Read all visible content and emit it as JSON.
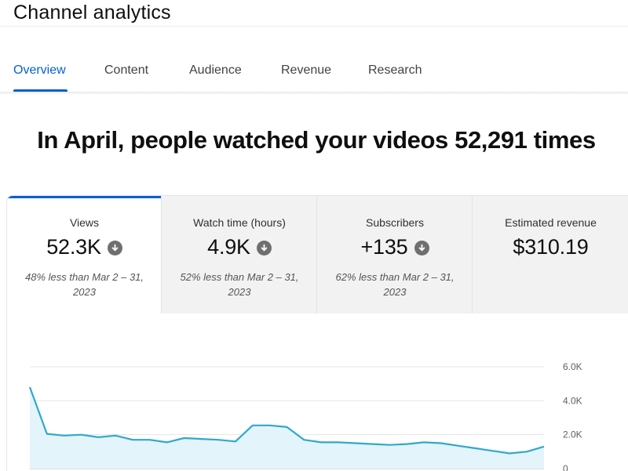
{
  "header": {
    "title": "Channel analytics"
  },
  "tabs": [
    {
      "label": "Overview",
      "active": true
    },
    {
      "label": "Content"
    },
    {
      "label": "Audience"
    },
    {
      "label": "Revenue"
    },
    {
      "label": "Research"
    }
  ],
  "headline": "In April, people watched your videos 52,291 times",
  "metrics": [
    {
      "label": "Views",
      "value": "52.3K",
      "trend_icon": "arrow-down-circle-icon",
      "compare_line1": "48% less than Mar 2 – 31,",
      "compare_line2": "2023"
    },
    {
      "label": "Watch time (hours)",
      "value": "4.9K",
      "trend_icon": "arrow-down-circle-icon",
      "compare_line1": "52% less than Mar 2 – 31,",
      "compare_line2": "2023"
    },
    {
      "label": "Subscribers",
      "value": "+135",
      "trend_icon": "arrow-down-circle-icon",
      "compare_line1": "62% less than Mar 2 – 31,",
      "compare_line2": "2023"
    },
    {
      "label": "Estimated revenue",
      "value": "$310.19"
    }
  ],
  "colors": {
    "accent": "#065fd4",
    "line": "#31a8cc",
    "area": "#e3f4fa"
  },
  "chart_data": {
    "type": "area",
    "y_ticks": [
      {
        "value": 6000,
        "label": "6.0K"
      },
      {
        "value": 4000,
        "label": "4.0K"
      },
      {
        "value": 2000,
        "label": "2.0K"
      },
      {
        "value": 0,
        "label": "0"
      }
    ],
    "ylim": [
      0,
      6000
    ],
    "grid": true,
    "values": [
      4800,
      2050,
      1950,
      2000,
      1850,
      1950,
      1700,
      1700,
      1550,
      1800,
      1750,
      1700,
      1600,
      2550,
      2550,
      2450,
      1700,
      1550,
      1550,
      1500,
      1450,
      1400,
      1450,
      1550,
      1500,
      1350,
      1200,
      1050,
      900,
      1000,
      1300
    ]
  }
}
